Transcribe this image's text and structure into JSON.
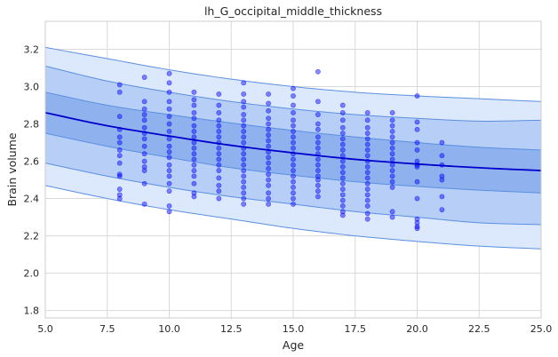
{
  "chart_data": {
    "type": "scatter",
    "title": "lh_G_occipital_middle_thickness",
    "xlabel": "Age",
    "ylabel": "Brain volume",
    "xlim": [
      5.0,
      25.0
    ],
    "ylim": [
      1.76,
      3.35
    ],
    "xticks": [
      5.0,
      7.5,
      10.0,
      12.5,
      15.0,
      17.5,
      20.0,
      22.5,
      25.0
    ],
    "xtick_labels": [
      "5.0",
      "7.5",
      "10.0",
      "12.5",
      "15.0",
      "17.5",
      "20.0",
      "22.5",
      "25.0"
    ],
    "yticks": [
      1.8,
      2.0,
      2.2,
      2.4,
      2.6,
      2.8,
      3.0,
      3.2
    ],
    "ytick_labels": [
      "1.8",
      "2.0",
      "2.2",
      "2.4",
      "2.6",
      "2.8",
      "3.0",
      "3.2"
    ],
    "grid": true,
    "colors": {
      "points": "#0000ff",
      "median_line": "#0000cc",
      "band_outer": "#dce8fb",
      "band_middle": "#b7cff7",
      "band_inner": "#8fb2ee",
      "band_edge": "#5b8fe0"
    },
    "curves": {
      "x": [
        5,
        7.5,
        10,
        12.5,
        15,
        17.5,
        20,
        22.5,
        25
      ],
      "median": [
        2.86,
        2.79,
        2.735,
        2.685,
        2.645,
        2.61,
        2.585,
        2.565,
        2.55
      ],
      "inner_upper": [
        2.97,
        2.9,
        2.85,
        2.805,
        2.765,
        2.73,
        2.7,
        2.675,
        2.66
      ],
      "inner_lower": [
        2.75,
        2.68,
        2.62,
        2.565,
        2.525,
        2.49,
        2.465,
        2.445,
        2.43
      ],
      "middle_upper": [
        3.11,
        3.03,
        2.97,
        2.92,
        2.88,
        2.85,
        2.83,
        2.815,
        2.82
      ],
      "middle_lower": [
        2.59,
        2.52,
        2.46,
        2.41,
        2.37,
        2.33,
        2.3,
        2.27,
        2.26
      ],
      "outer_upper": [
        3.21,
        3.15,
        3.09,
        3.04,
        3.0,
        2.97,
        2.95,
        2.935,
        2.92
      ],
      "outer_lower": [
        2.47,
        2.4,
        2.34,
        2.29,
        2.24,
        2.2,
        2.17,
        2.145,
        2.13
      ]
    },
    "points": [
      [
        8,
        3.01
      ],
      [
        8,
        2.97
      ],
      [
        8,
        2.84
      ],
      [
        8,
        2.77
      ],
      [
        8,
        2.73
      ],
      [
        8,
        2.7
      ],
      [
        8,
        2.66
      ],
      [
        8,
        2.63
      ],
      [
        8,
        2.59
      ],
      [
        8,
        2.53
      ],
      [
        8,
        2.52
      ],
      [
        8,
        2.45
      ],
      [
        8,
        2.42
      ],
      [
        8,
        2.4
      ],
      [
        9,
        3.05
      ],
      [
        9,
        2.92
      ],
      [
        9,
        2.88
      ],
      [
        9,
        2.85
      ],
      [
        9,
        2.82
      ],
      [
        9,
        2.78
      ],
      [
        9,
        2.75
      ],
      [
        9,
        2.72
      ],
      [
        9,
        2.68
      ],
      [
        9,
        2.64
      ],
      [
        9,
        2.6
      ],
      [
        9,
        2.57
      ],
      [
        9,
        2.55
      ],
      [
        9,
        2.48
      ],
      [
        9,
        2.37
      ],
      [
        10,
        3.07
      ],
      [
        10,
        3.02
      ],
      [
        10,
        2.97
      ],
      [
        10,
        2.92
      ],
      [
        10,
        2.88
      ],
      [
        10,
        2.84
      ],
      [
        10,
        2.8
      ],
      [
        10,
        2.76
      ],
      [
        10,
        2.72
      ],
      [
        10,
        2.68
      ],
      [
        10,
        2.65
      ],
      [
        10,
        2.62
      ],
      [
        10,
        2.58
      ],
      [
        10,
        2.55
      ],
      [
        10,
        2.52
      ],
      [
        10,
        2.48
      ],
      [
        10,
        2.44
      ],
      [
        10,
        2.36
      ],
      [
        10,
        2.33
      ],
      [
        11,
        2.97
      ],
      [
        11,
        2.93
      ],
      [
        11,
        2.9
      ],
      [
        11,
        2.86
      ],
      [
        11,
        2.83
      ],
      [
        11,
        2.79
      ],
      [
        11,
        2.76
      ],
      [
        11,
        2.73
      ],
      [
        11,
        2.7
      ],
      [
        11,
        2.67
      ],
      [
        11,
        2.64
      ],
      [
        11,
        2.61
      ],
      [
        11,
        2.58
      ],
      [
        11,
        2.55
      ],
      [
        11,
        2.52
      ],
      [
        11,
        2.48
      ],
      [
        11,
        2.43
      ],
      [
        11,
        2.41
      ],
      [
        12,
        2.96
      ],
      [
        12,
        2.9
      ],
      [
        12,
        2.86
      ],
      [
        12,
        2.82
      ],
      [
        12,
        2.79
      ],
      [
        12,
        2.76
      ],
      [
        12,
        2.73
      ],
      [
        12,
        2.7
      ],
      [
        12,
        2.67
      ],
      [
        12,
        2.64
      ],
      [
        12,
        2.61
      ],
      [
        12,
        2.58
      ],
      [
        12,
        2.55
      ],
      [
        12,
        2.51
      ],
      [
        12,
        2.47
      ],
      [
        12,
        2.44
      ],
      [
        12,
        2.4
      ],
      [
        13,
        3.02
      ],
      [
        13,
        2.96
      ],
      [
        13,
        2.92
      ],
      [
        13,
        2.89
      ],
      [
        13,
        2.85
      ],
      [
        13,
        2.82
      ],
      [
        13,
        2.79
      ],
      [
        13,
        2.76
      ],
      [
        13,
        2.73
      ],
      [
        13,
        2.7
      ],
      [
        13,
        2.67
      ],
      [
        13,
        2.64
      ],
      [
        13,
        2.61
      ],
      [
        13,
        2.58
      ],
      [
        13,
        2.55
      ],
      [
        13,
        2.52
      ],
      [
        13,
        2.49
      ],
      [
        13,
        2.46
      ],
      [
        13,
        2.43
      ],
      [
        13,
        2.4
      ],
      [
        13,
        2.37
      ],
      [
        14,
        2.96
      ],
      [
        14,
        2.91
      ],
      [
        14,
        2.87
      ],
      [
        14,
        2.83
      ],
      [
        14,
        2.8
      ],
      [
        14,
        2.77
      ],
      [
        14,
        2.74
      ],
      [
        14,
        2.71
      ],
      [
        14,
        2.68
      ],
      [
        14,
        2.65
      ],
      [
        14,
        2.62
      ],
      [
        14,
        2.59
      ],
      [
        14,
        2.56
      ],
      [
        14,
        2.53
      ],
      [
        14,
        2.5
      ],
      [
        14,
        2.47
      ],
      [
        14,
        2.43
      ],
      [
        14,
        2.4
      ],
      [
        14,
        2.37
      ],
      [
        15,
        2.99
      ],
      [
        15,
        2.95
      ],
      [
        15,
        2.9
      ],
      [
        15,
        2.86
      ],
      [
        15,
        2.82
      ],
      [
        15,
        2.79
      ],
      [
        15,
        2.76
      ],
      [
        15,
        2.73
      ],
      [
        15,
        2.7
      ],
      [
        15,
        2.67
      ],
      [
        15,
        2.64
      ],
      [
        15,
        2.61
      ],
      [
        15,
        2.58
      ],
      [
        15,
        2.55
      ],
      [
        15,
        2.52
      ],
      [
        15,
        2.49
      ],
      [
        15,
        2.46
      ],
      [
        15,
        2.43
      ],
      [
        15,
        2.4
      ],
      [
        15,
        2.37
      ],
      [
        16,
        3.08
      ],
      [
        16,
        2.92
      ],
      [
        16,
        2.85
      ],
      [
        16,
        2.8
      ],
      [
        16,
        2.77
      ],
      [
        16,
        2.73
      ],
      [
        16,
        2.7
      ],
      [
        16,
        2.67
      ],
      [
        16,
        2.64
      ],
      [
        16,
        2.61
      ],
      [
        16,
        2.58
      ],
      [
        16,
        2.55
      ],
      [
        16,
        2.52
      ],
      [
        16,
        2.5
      ],
      [
        16,
        2.47
      ],
      [
        16,
        2.44
      ],
      [
        16,
        2.41
      ],
      [
        17,
        2.9
      ],
      [
        17,
        2.86
      ],
      [
        17,
        2.82
      ],
      [
        17,
        2.78
      ],
      [
        17,
        2.75
      ],
      [
        17,
        2.72
      ],
      [
        17,
        2.69
      ],
      [
        17,
        2.66
      ],
      [
        17,
        2.63
      ],
      [
        17,
        2.6
      ],
      [
        17,
        2.57
      ],
      [
        17,
        2.54
      ],
      [
        17,
        2.51
      ],
      [
        17,
        2.48
      ],
      [
        17,
        2.45
      ],
      [
        17,
        2.42
      ],
      [
        17,
        2.39
      ],
      [
        17,
        2.36
      ],
      [
        17,
        2.33
      ],
      [
        17,
        2.31
      ],
      [
        18,
        2.86
      ],
      [
        18,
        2.82
      ],
      [
        18,
        2.78
      ],
      [
        18,
        2.75
      ],
      [
        18,
        2.72
      ],
      [
        18,
        2.69
      ],
      [
        18,
        2.66
      ],
      [
        18,
        2.63
      ],
      [
        18,
        2.6
      ],
      [
        18,
        2.57
      ],
      [
        18,
        2.54
      ],
      [
        18,
        2.51
      ],
      [
        18,
        2.48
      ],
      [
        18,
        2.45
      ],
      [
        18,
        2.42
      ],
      [
        18,
        2.39
      ],
      [
        18,
        2.36
      ],
      [
        18,
        2.32
      ],
      [
        18,
        2.29
      ],
      [
        19,
        2.86
      ],
      [
        19,
        2.82
      ],
      [
        19,
        2.79
      ],
      [
        19,
        2.76
      ],
      [
        19,
        2.73
      ],
      [
        19,
        2.7
      ],
      [
        19,
        2.67
      ],
      [
        19,
        2.64
      ],
      [
        19,
        2.61
      ],
      [
        19,
        2.58
      ],
      [
        19,
        2.55
      ],
      [
        19,
        2.52
      ],
      [
        19,
        2.49
      ],
      [
        19,
        2.46
      ],
      [
        19,
        2.33
      ],
      [
        19,
        2.3
      ],
      [
        20,
        2.95
      ],
      [
        20,
        2.81
      ],
      [
        20,
        2.77
      ],
      [
        20,
        2.7
      ],
      [
        20,
        2.66
      ],
      [
        20,
        2.6
      ],
      [
        20,
        2.58
      ],
      [
        20,
        2.57
      ],
      [
        20,
        2.49
      ],
      [
        20,
        2.4
      ],
      [
        20,
        2.29
      ],
      [
        20,
        2.27
      ],
      [
        20,
        2.25
      ],
      [
        20,
        2.24
      ],
      [
        21,
        2.7
      ],
      [
        21,
        2.63
      ],
      [
        21,
        2.58
      ],
      [
        21,
        2.52
      ],
      [
        21,
        2.5
      ],
      [
        21,
        2.41
      ],
      [
        21,
        2.34
      ]
    ]
  }
}
